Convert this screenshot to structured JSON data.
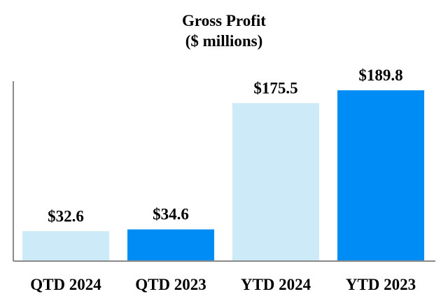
{
  "chart_data": {
    "type": "bar",
    "title": "Gross Profit",
    "subtitle": "($ millions)",
    "categories": [
      "QTD 2024",
      "QTD 2023",
      "YTD 2024",
      "YTD 2023"
    ],
    "values": [
      32.6,
      34.6,
      175.5,
      189.8
    ],
    "data_labels": [
      "$32.6",
      "$34.6",
      "$175.5",
      "$189.8"
    ],
    "colors": [
      "#cdeaf9",
      "#008cf5",
      "#cdeaf9",
      "#008cf5"
    ],
    "xlabel": "",
    "ylabel": "",
    "ylim": [
      0,
      189.8
    ],
    "grid": false,
    "legend": "none"
  }
}
